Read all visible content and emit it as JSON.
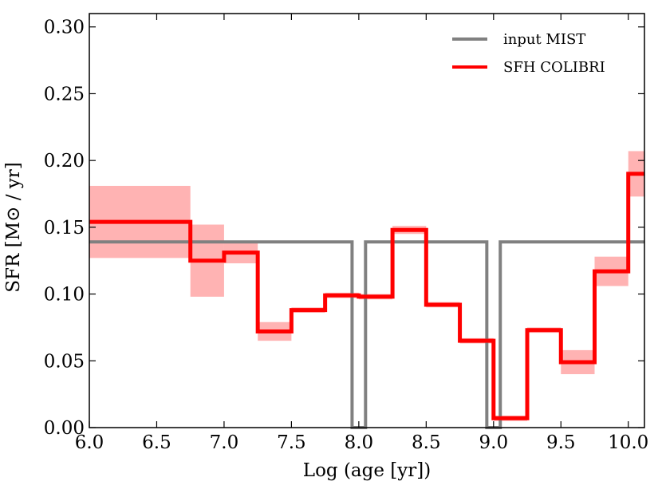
{
  "chart_data": {
    "type": "line",
    "title": "",
    "xlabel": "Log (age [yr])",
    "ylabel": "SFR [M⊙ / yr]",
    "xlim": [
      6.0,
      10.12
    ],
    "ylim": [
      0.0,
      0.31
    ],
    "xticks": [
      6.0,
      6.5,
      7.0,
      7.5,
      8.0,
      8.5,
      9.0,
      9.5,
      10.0
    ],
    "xtick_labels": [
      "6.0",
      "6.5",
      "7.0",
      "7.5",
      "8.0",
      "8.5",
      "9.0",
      "9.5",
      "10.0"
    ],
    "yticks": [
      0.0,
      0.05,
      0.1,
      0.15,
      0.2,
      0.25,
      0.3
    ],
    "ytick_labels": [
      "0.00",
      "0.05",
      "0.10",
      "0.15",
      "0.20",
      "0.25",
      "0.30"
    ],
    "grid": false,
    "legend_position": "top-right",
    "series": [
      {
        "name": "input MIST",
        "color": "#808080",
        "style": "step",
        "points": [
          [
            6.0,
            0.139
          ],
          [
            7.95,
            0.139
          ],
          [
            7.95,
            0.0
          ],
          [
            7.97,
            0.0
          ],
          [
            7.97,
            0.0
          ],
          [
            8.05,
            0.0
          ],
          [
            8.05,
            0.139
          ],
          [
            8.95,
            0.139
          ],
          [
            8.95,
            0.0
          ],
          [
            9.05,
            0.0
          ],
          [
            9.05,
            0.139
          ],
          [
            10.12,
            0.139
          ]
        ]
      },
      {
        "name": "SFH COLIBRI",
        "color": "#ff0000",
        "style": "step",
        "bins": [
          {
            "x0": 6.0,
            "x1": 6.75,
            "value": 0.154
          },
          {
            "x0": 6.75,
            "x1": 7.0,
            "value": 0.125
          },
          {
            "x0": 7.0,
            "x1": 7.25,
            "value": 0.131
          },
          {
            "x0": 7.25,
            "x1": 7.5,
            "value": 0.072
          },
          {
            "x0": 7.5,
            "x1": 7.75,
            "value": 0.088
          },
          {
            "x0": 7.75,
            "x1": 8.0,
            "value": 0.099
          },
          {
            "x0": 8.0,
            "x1": 8.25,
            "value": 0.098
          },
          {
            "x0": 8.25,
            "x1": 8.5,
            "value": 0.148
          },
          {
            "x0": 8.5,
            "x1": 8.75,
            "value": 0.092
          },
          {
            "x0": 8.75,
            "x1": 9.0,
            "value": 0.065
          },
          {
            "x0": 9.0,
            "x1": 9.25,
            "value": 0.007
          },
          {
            "x0": 9.25,
            "x1": 9.5,
            "value": 0.073
          },
          {
            "x0": 9.5,
            "x1": 9.75,
            "value": 0.049
          },
          {
            "x0": 9.75,
            "x1": 10.0,
            "value": 0.117
          },
          {
            "x0": 10.0,
            "x1": 10.12,
            "value": 0.19
          }
        ]
      }
    ],
    "uncertainty": {
      "color": "#ff9999",
      "boxes": [
        {
          "x0": 6.0,
          "x1": 6.75,
          "lo": 0.127,
          "hi": 0.181
        },
        {
          "x0": 6.75,
          "x1": 7.0,
          "lo": 0.098,
          "hi": 0.152
        },
        {
          "x0": 7.0,
          "x1": 7.25,
          "lo": 0.123,
          "hi": 0.14
        },
        {
          "x0": 7.25,
          "x1": 7.5,
          "lo": 0.065,
          "hi": 0.079
        },
        {
          "x0": 7.5,
          "x1": 7.75,
          "lo": 0.086,
          "hi": 0.09
        },
        {
          "x0": 7.75,
          "x1": 8.0,
          "lo": 0.097,
          "hi": 0.101
        },
        {
          "x0": 8.0,
          "x1": 8.25,
          "lo": 0.096,
          "hi": 0.1
        },
        {
          "x0": 8.25,
          "x1": 8.5,
          "lo": 0.145,
          "hi": 0.151
        },
        {
          "x0": 8.5,
          "x1": 8.75,
          "lo": 0.09,
          "hi": 0.094
        },
        {
          "x0": 8.75,
          "x1": 9.0,
          "lo": 0.063,
          "hi": 0.067
        },
        {
          "x0": 9.0,
          "x1": 9.25,
          "lo": 0.005,
          "hi": 0.009
        },
        {
          "x0": 9.25,
          "x1": 9.5,
          "lo": 0.071,
          "hi": 0.075
        },
        {
          "x0": 9.5,
          "x1": 9.75,
          "lo": 0.04,
          "hi": 0.058
        },
        {
          "x0": 9.75,
          "x1": 10.0,
          "lo": 0.106,
          "hi": 0.128
        },
        {
          "x0": 10.0,
          "x1": 10.12,
          "lo": 0.173,
          "hi": 0.207
        }
      ]
    }
  }
}
